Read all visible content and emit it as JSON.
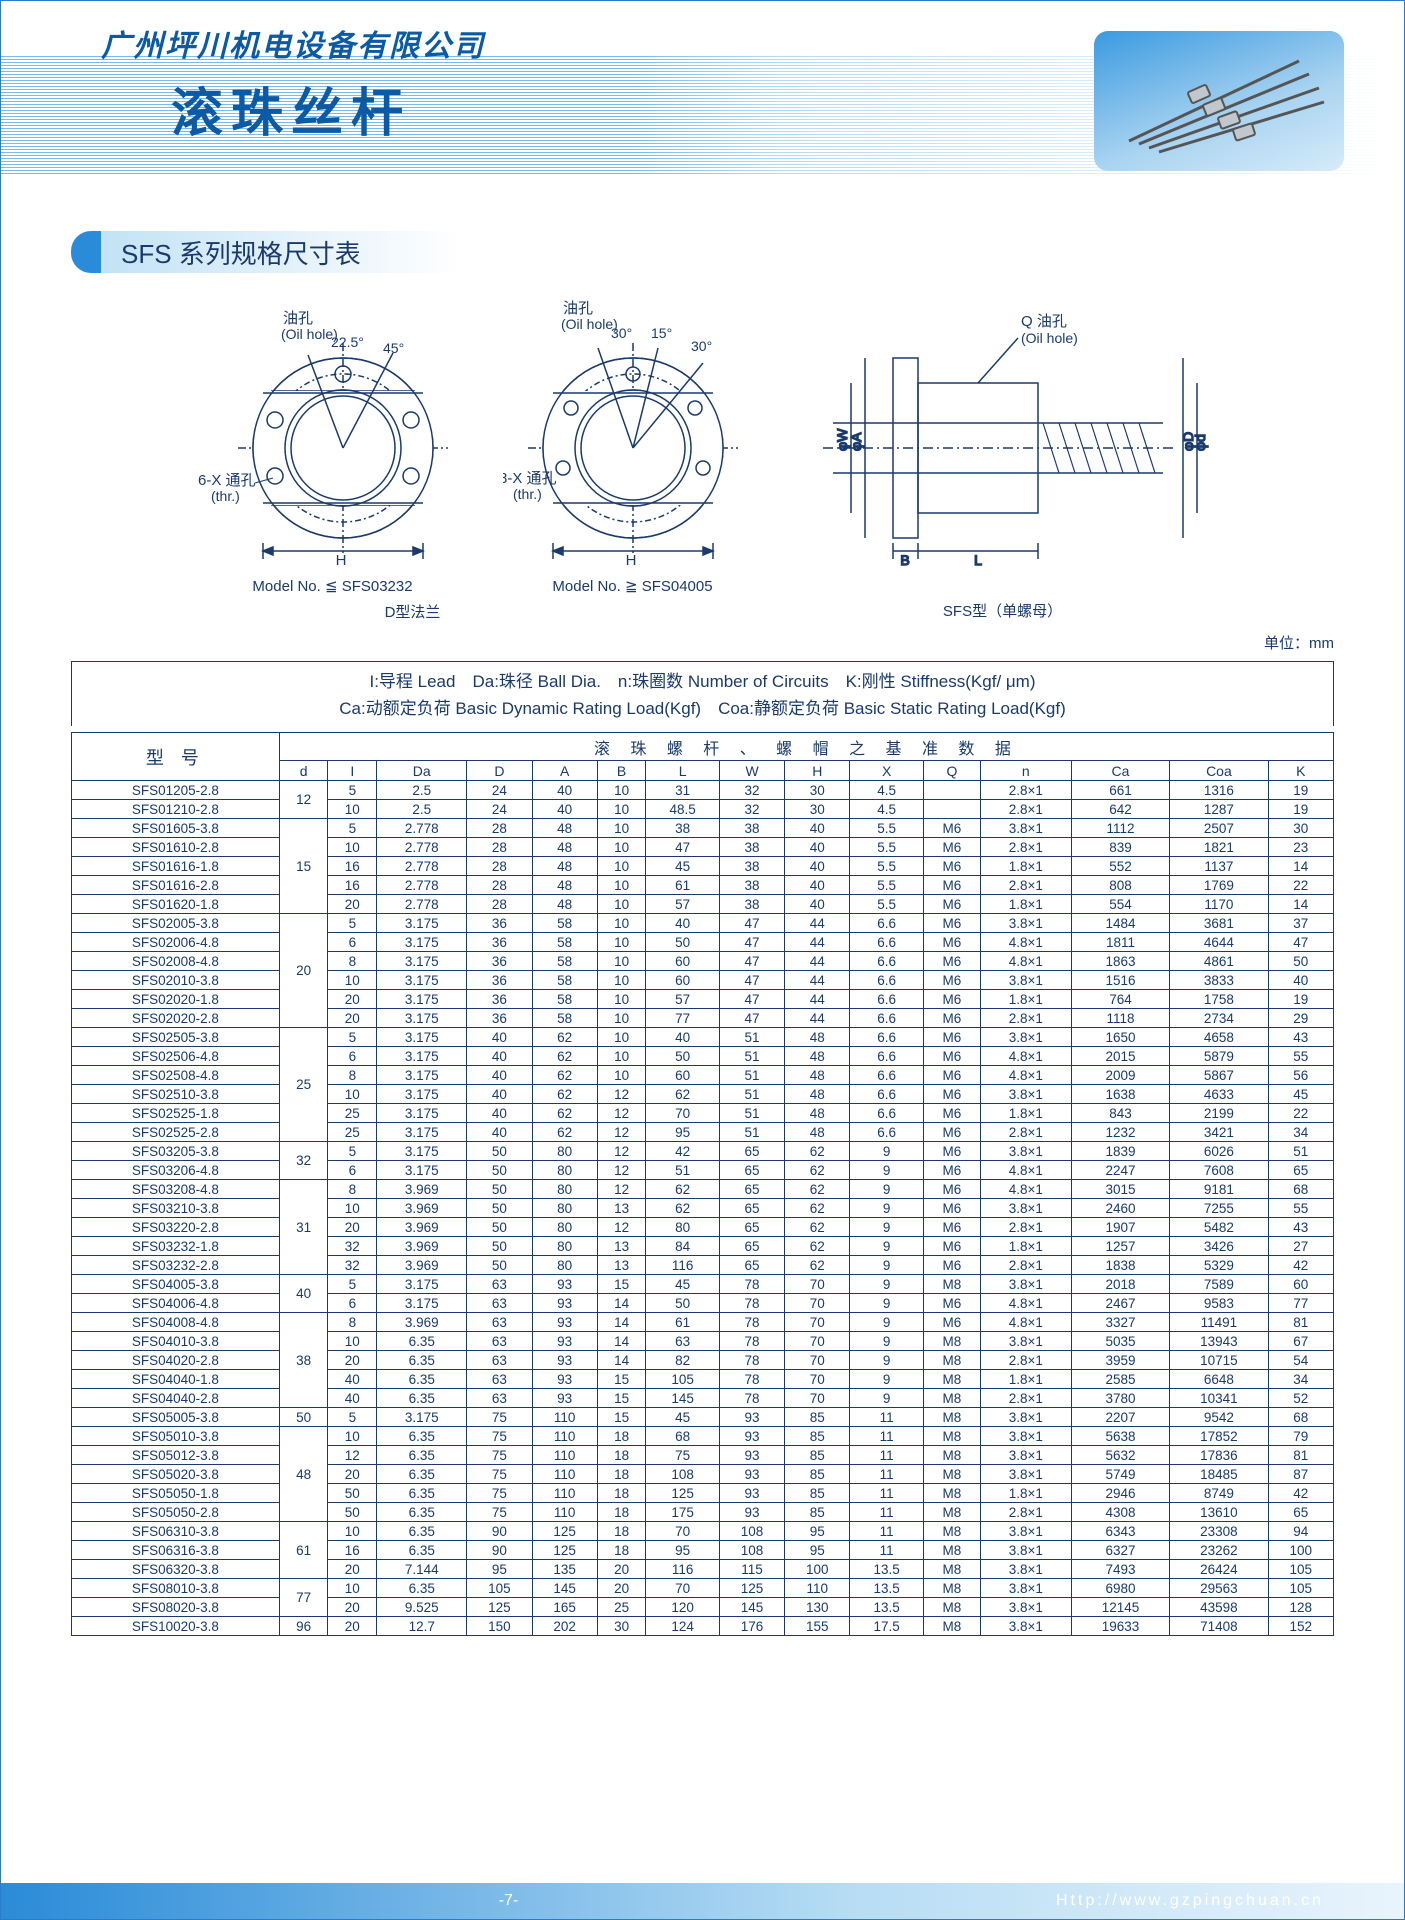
{
  "header": {
    "company": "广州坪川机电设备有限公司",
    "product": "滚珠丝杆",
    "section": "SFS 系列规格尺寸表"
  },
  "diagrams": {
    "left": {
      "oil_hole": "油孔",
      "oil_hole_en": "(Oil hole)",
      "angle1": "22.5°",
      "angle2": "45°",
      "thru": "6-X 通孔",
      "thru_en": "(thr.)",
      "model": "Model No. ≦ SFS03232",
      "label": "D型法兰"
    },
    "mid": {
      "oil_hole": "油孔",
      "oil_hole_en": "(Oil hole)",
      "angle1": "30°",
      "angle2": "15°",
      "angle3": "30°",
      "thru": "8-X 通孔",
      "thru_en": "(thr.)",
      "model": "Model No. ≧ SFS04005"
    },
    "right": {
      "q_oil": "Q 油孔",
      "q_oil_en": "(Oil hole)",
      "label": "SFS型（单螺母）"
    }
  },
  "unit": "单位：mm",
  "legend": {
    "line1": "I:导程 Lead　Da:珠径 Ball Dia.　n:珠圈数 Number of Circuits　K:刚性 Stiffness(Kgf/ μm)",
    "line2": "Ca:动额定负荷 Basic Dynamic Rating Load(Kgf)　Coa:静额定负荷 Basic Static Rating Load(Kgf)"
  },
  "table": {
    "model_head": "型 号",
    "data_head": "滚 珠 螺 杆 、 螺 帽 之 基 准 数 据",
    "columns": [
      "d",
      "I",
      "Da",
      "D",
      "A",
      "B",
      "L",
      "W",
      "H",
      "X",
      "Q",
      "n",
      "Ca",
      "Coa",
      "K"
    ],
    "d_groups": [
      {
        "d": "12",
        "span": 2
      },
      {
        "d": "15",
        "span": 5
      },
      {
        "d": "20",
        "span": 6
      },
      {
        "d": "25",
        "span": 6
      },
      {
        "d": "32",
        "span": 2
      },
      {
        "d": "31",
        "span": 5
      },
      {
        "d": "40",
        "span": 2
      },
      {
        "d": "38",
        "span": 5
      },
      {
        "d": "50",
        "span": 1
      },
      {
        "d": "48",
        "span": 5
      },
      {
        "d": "61",
        "span": 3
      },
      {
        "d": "77",
        "span": 2
      },
      {
        "d": "96",
        "span": 1
      }
    ],
    "rows": [
      {
        "m": "SFS01205-2.8",
        "v": [
          "5",
          "2.5",
          "24",
          "40",
          "10",
          "31",
          "32",
          "30",
          "4.5",
          "",
          "2.8×1",
          "661",
          "1316",
          "19"
        ]
      },
      {
        "m": "SFS01210-2.8",
        "v": [
          "10",
          "2.5",
          "24",
          "40",
          "10",
          "48.5",
          "32",
          "30",
          "4.5",
          "",
          "2.8×1",
          "642",
          "1287",
          "19"
        ]
      },
      {
        "m": "SFS01605-3.8",
        "v": [
          "5",
          "2.778",
          "28",
          "48",
          "10",
          "38",
          "38",
          "40",
          "5.5",
          "M6",
          "3.8×1",
          "1112",
          "2507",
          "30"
        ]
      },
      {
        "m": "SFS01610-2.8",
        "v": [
          "10",
          "2.778",
          "28",
          "48",
          "10",
          "47",
          "38",
          "40",
          "5.5",
          "M6",
          "2.8×1",
          "839",
          "1821",
          "23"
        ]
      },
      {
        "m": "SFS01616-1.8",
        "v": [
          "16",
          "2.778",
          "28",
          "48",
          "10",
          "45",
          "38",
          "40",
          "5.5",
          "M6",
          "1.8×1",
          "552",
          "1137",
          "14"
        ]
      },
      {
        "m": "SFS01616-2.8",
        "v": [
          "16",
          "2.778",
          "28",
          "48",
          "10",
          "61",
          "38",
          "40",
          "5.5",
          "M6",
          "2.8×1",
          "808",
          "1769",
          "22"
        ]
      },
      {
        "m": "SFS01620-1.8",
        "v": [
          "20",
          "2.778",
          "28",
          "48",
          "10",
          "57",
          "38",
          "40",
          "5.5",
          "M6",
          "1.8×1",
          "554",
          "1170",
          "14"
        ]
      },
      {
        "m": "SFS02005-3.8",
        "v": [
          "5",
          "3.175",
          "36",
          "58",
          "10",
          "40",
          "47",
          "44",
          "6.6",
          "M6",
          "3.8×1",
          "1484",
          "3681",
          "37"
        ]
      },
      {
        "m": "SFS02006-4.8",
        "v": [
          "6",
          "3.175",
          "36",
          "58",
          "10",
          "50",
          "47",
          "44",
          "6.6",
          "M6",
          "4.8×1",
          "1811",
          "4644",
          "47"
        ]
      },
      {
        "m": "SFS02008-4.8",
        "v": [
          "8",
          "3.175",
          "36",
          "58",
          "10",
          "60",
          "47",
          "44",
          "6.6",
          "M6",
          "4.8×1",
          "1863",
          "4861",
          "50"
        ]
      },
      {
        "m": "SFS02010-3.8",
        "v": [
          "10",
          "3.175",
          "36",
          "58",
          "10",
          "60",
          "47",
          "44",
          "6.6",
          "M6",
          "3.8×1",
          "1516",
          "3833",
          "40"
        ]
      },
      {
        "m": "SFS02020-1.8",
        "v": [
          "20",
          "3.175",
          "36",
          "58",
          "10",
          "57",
          "47",
          "44",
          "6.6",
          "M6",
          "1.8×1",
          "764",
          "1758",
          "19"
        ]
      },
      {
        "m": "SFS02020-2.8",
        "v": [
          "20",
          "3.175",
          "36",
          "58",
          "10",
          "77",
          "47",
          "44",
          "6.6",
          "M6",
          "2.8×1",
          "1118",
          "2734",
          "29"
        ]
      },
      {
        "m": "SFS02505-3.8",
        "v": [
          "5",
          "3.175",
          "40",
          "62",
          "10",
          "40",
          "51",
          "48",
          "6.6",
          "M6",
          "3.8×1",
          "1650",
          "4658",
          "43"
        ]
      },
      {
        "m": "SFS02506-4.8",
        "v": [
          "6",
          "3.175",
          "40",
          "62",
          "10",
          "50",
          "51",
          "48",
          "6.6",
          "M6",
          "4.8×1",
          "2015",
          "5879",
          "55"
        ]
      },
      {
        "m": "SFS02508-4.8",
        "v": [
          "8",
          "3.175",
          "40",
          "62",
          "10",
          "60",
          "51",
          "48",
          "6.6",
          "M6",
          "4.8×1",
          "2009",
          "5867",
          "56"
        ]
      },
      {
        "m": "SFS02510-3.8",
        "v": [
          "10",
          "3.175",
          "40",
          "62",
          "12",
          "62",
          "51",
          "48",
          "6.6",
          "M6",
          "3.8×1",
          "1638",
          "4633",
          "45"
        ]
      },
      {
        "m": "SFS02525-1.8",
        "v": [
          "25",
          "3.175",
          "40",
          "62",
          "12",
          "70",
          "51",
          "48",
          "6.6",
          "M6",
          "1.8×1",
          "843",
          "2199",
          "22"
        ]
      },
      {
        "m": "SFS02525-2.8",
        "v": [
          "25",
          "3.175",
          "40",
          "62",
          "12",
          "95",
          "51",
          "48",
          "6.6",
          "M6",
          "2.8×1",
          "1232",
          "3421",
          "34"
        ]
      },
      {
        "m": "SFS03205-3.8",
        "v": [
          "5",
          "3.175",
          "50",
          "80",
          "12",
          "42",
          "65",
          "62",
          "9",
          "M6",
          "3.8×1",
          "1839",
          "6026",
          "51"
        ]
      },
      {
        "m": "SFS03206-4.8",
        "v": [
          "6",
          "3.175",
          "50",
          "80",
          "12",
          "51",
          "65",
          "62",
          "9",
          "M6",
          "4.8×1",
          "2247",
          "7608",
          "65"
        ]
      },
      {
        "m": "SFS03208-4.8",
        "v": [
          "8",
          "3.969",
          "50",
          "80",
          "12",
          "62",
          "65",
          "62",
          "9",
          "M6",
          "4.8×1",
          "3015",
          "9181",
          "68"
        ]
      },
      {
        "m": "SFS03210-3.8",
        "v": [
          "10",
          "3.969",
          "50",
          "80",
          "13",
          "62",
          "65",
          "62",
          "9",
          "M6",
          "3.8×1",
          "2460",
          "7255",
          "55"
        ]
      },
      {
        "m": "SFS03220-2.8",
        "v": [
          "20",
          "3.969",
          "50",
          "80",
          "12",
          "80",
          "65",
          "62",
          "9",
          "M6",
          "2.8×1",
          "1907",
          "5482",
          "43"
        ]
      },
      {
        "m": "SFS03232-1.8",
        "v": [
          "32",
          "3.969",
          "50",
          "80",
          "13",
          "84",
          "65",
          "62",
          "9",
          "M6",
          "1.8×1",
          "1257",
          "3426",
          "27"
        ]
      },
      {
        "m": "SFS03232-2.8",
        "v": [
          "32",
          "3.969",
          "50",
          "80",
          "13",
          "116",
          "65",
          "62",
          "9",
          "M6",
          "2.8×1",
          "1838",
          "5329",
          "42"
        ]
      },
      {
        "m": "SFS04005-3.8",
        "v": [
          "5",
          "3.175",
          "63",
          "93",
          "15",
          "45",
          "78",
          "70",
          "9",
          "M8",
          "3.8×1",
          "2018",
          "7589",
          "60"
        ]
      },
      {
        "m": "SFS04006-4.8",
        "v": [
          "6",
          "3.175",
          "63",
          "93",
          "14",
          "50",
          "78",
          "70",
          "9",
          "M6",
          "4.8×1",
          "2467",
          "9583",
          "77"
        ]
      },
      {
        "m": "SFS04008-4.8",
        "v": [
          "8",
          "3.969",
          "63",
          "93",
          "14",
          "61",
          "78",
          "70",
          "9",
          "M6",
          "4.8×1",
          "3327",
          "11491",
          "81"
        ]
      },
      {
        "m": "SFS04010-3.8",
        "v": [
          "10",
          "6.35",
          "63",
          "93",
          "14",
          "63",
          "78",
          "70",
          "9",
          "M8",
          "3.8×1",
          "5035",
          "13943",
          "67"
        ]
      },
      {
        "m": "SFS04020-2.8",
        "v": [
          "20",
          "6.35",
          "63",
          "93",
          "14",
          "82",
          "78",
          "70",
          "9",
          "M8",
          "2.8×1",
          "3959",
          "10715",
          "54"
        ]
      },
      {
        "m": "SFS04040-1.8",
        "v": [
          "40",
          "6.35",
          "63",
          "93",
          "15",
          "105",
          "78",
          "70",
          "9",
          "M8",
          "1.8×1",
          "2585",
          "6648",
          "34"
        ]
      },
      {
        "m": "SFS04040-2.8",
        "v": [
          "40",
          "6.35",
          "63",
          "93",
          "15",
          "145",
          "78",
          "70",
          "9",
          "M8",
          "2.8×1",
          "3780",
          "10341",
          "52"
        ]
      },
      {
        "m": "SFS05005-3.8",
        "v": [
          "5",
          "3.175",
          "75",
          "110",
          "15",
          "45",
          "93",
          "85",
          "11",
          "M8",
          "3.8×1",
          "2207",
          "9542",
          "68"
        ]
      },
      {
        "m": "SFS05010-3.8",
        "v": [
          "10",
          "6.35",
          "75",
          "110",
          "18",
          "68",
          "93",
          "85",
          "11",
          "M8",
          "3.8×1",
          "5638",
          "17852",
          "79"
        ]
      },
      {
        "m": "SFS05012-3.8",
        "v": [
          "12",
          "6.35",
          "75",
          "110",
          "18",
          "75",
          "93",
          "85",
          "11",
          "M8",
          "3.8×1",
          "5632",
          "17836",
          "81"
        ]
      },
      {
        "m": "SFS05020-3.8",
        "v": [
          "20",
          "6.35",
          "75",
          "110",
          "18",
          "108",
          "93",
          "85",
          "11",
          "M8",
          "3.8×1",
          "5749",
          "18485",
          "87"
        ]
      },
      {
        "m": "SFS05050-1.8",
        "v": [
          "50",
          "6.35",
          "75",
          "110",
          "18",
          "125",
          "93",
          "85",
          "11",
          "M8",
          "1.8×1",
          "2946",
          "8749",
          "42"
        ]
      },
      {
        "m": "SFS05050-2.8",
        "v": [
          "50",
          "6.35",
          "75",
          "110",
          "18",
          "175",
          "93",
          "85",
          "11",
          "M8",
          "2.8×1",
          "4308",
          "13610",
          "65"
        ]
      },
      {
        "m": "SFS06310-3.8",
        "v": [
          "10",
          "6.35",
          "90",
          "125",
          "18",
          "70",
          "108",
          "95",
          "11",
          "M8",
          "3.8×1",
          "6343",
          "23308",
          "94"
        ]
      },
      {
        "m": "SFS06316-3.8",
        "v": [
          "16",
          "6.35",
          "90",
          "125",
          "18",
          "95",
          "108",
          "95",
          "11",
          "M8",
          "3.8×1",
          "6327",
          "23262",
          "100"
        ]
      },
      {
        "m": "SFS06320-3.8",
        "v": [
          "20",
          "7.144",
          "95",
          "135",
          "20",
          "116",
          "115",
          "100",
          "13.5",
          "M8",
          "3.8×1",
          "7493",
          "26424",
          "105"
        ]
      },
      {
        "m": "SFS08010-3.8",
        "v": [
          "10",
          "6.35",
          "105",
          "145",
          "20",
          "70",
          "125",
          "110",
          "13.5",
          "M8",
          "3.8×1",
          "6980",
          "29563",
          "105"
        ]
      },
      {
        "m": "SFS08020-3.8",
        "v": [
          "20",
          "9.525",
          "125",
          "165",
          "25",
          "120",
          "145",
          "130",
          "13.5",
          "M8",
          "3.8×1",
          "12145",
          "43598",
          "128"
        ]
      },
      {
        "m": "SFS10020-3.8",
        "v": [
          "20",
          "12.7",
          "150",
          "202",
          "30",
          "124",
          "176",
          "155",
          "17.5",
          "M8",
          "3.8×1",
          "19633",
          "71408",
          "152"
        ]
      }
    ]
  },
  "footer": {
    "page": "-7-",
    "url": "Http://www.gzpingchuan.cn"
  }
}
